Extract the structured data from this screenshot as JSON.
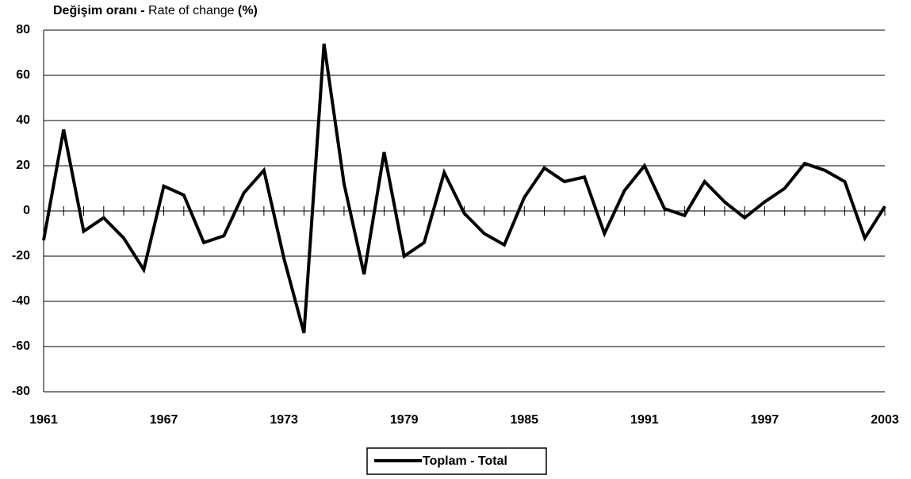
{
  "chart_data": {
    "type": "line",
    "title": [
      "Değişim oranı - ",
      "Rate of change ",
      "(%)"
    ],
    "x": [
      1961,
      1962,
      1963,
      1964,
      1965,
      1966,
      1967,
      1968,
      1969,
      1970,
      1971,
      1972,
      1973,
      1974,
      1975,
      1976,
      1977,
      1978,
      1979,
      1980,
      1981,
      1982,
      1983,
      1984,
      1985,
      1986,
      1987,
      1988,
      1989,
      1990,
      1991,
      1992,
      1993,
      1994,
      1995,
      1996,
      1997,
      1998,
      1999,
      2000,
      2001,
      2002,
      2003
    ],
    "series": [
      {
        "name": "Toplam - Total",
        "color": "#000000",
        "values": [
          -13,
          36,
          -9,
          -3,
          -12,
          -26,
          11,
          7,
          -14,
          -11,
          8,
          18,
          -21,
          -54,
          74,
          12,
          -28,
          26,
          -20,
          -14,
          17,
          -1,
          -10,
          -15,
          6,
          19,
          13,
          15,
          -10,
          9,
          20,
          1,
          -2,
          13,
          4,
          -3,
          4,
          10,
          21,
          18,
          13,
          -12,
          2
        ]
      }
    ],
    "xlim": [
      1961,
      2003
    ],
    "xticks": [
      1961,
      1967,
      1973,
      1979,
      1985,
      1991,
      1997,
      2003
    ],
    "ylim": [
      -80,
      80
    ],
    "yticks": [
      -80,
      -60,
      -40,
      -20,
      0,
      20,
      40,
      60,
      80
    ],
    "grid": true,
    "legend": "bottom"
  }
}
